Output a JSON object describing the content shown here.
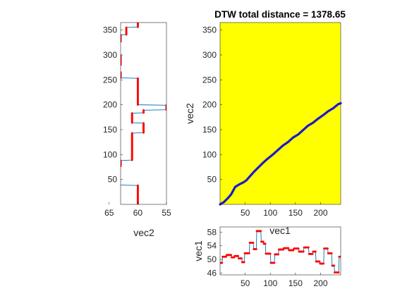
{
  "colors": {
    "background": "#ffffff",
    "map_fill": "#ffff00",
    "path": "#1a1acc",
    "points": "#ff0000",
    "signal_line": "#0072bd",
    "axes": "#262626"
  },
  "chart_data": [
    {
      "id": "vec2_panel",
      "type": "line",
      "orientation": "vertical",
      "xlabel": "vec2",
      "xdir": "reverse",
      "xlim": [
        55,
        63
      ],
      "xticks": [
        65,
        60,
        55
      ],
      "xtick_labels": [
        "65",
        "60",
        "55"
      ],
      "ylim": [
        0,
        365
      ],
      "yticks": [
        50,
        100,
        150,
        200,
        250,
        300,
        350
      ],
      "ytick_labels": [
        "50",
        "100",
        "150",
        "200",
        "250",
        "300",
        "350"
      ],
      "series": [
        {
          "segments": [
            {
              "index": [
                0,
                38
              ],
              "value": 60
            },
            {
              "index": [
                39,
                48
              ],
              "value": 64
            },
            {
              "index": [
                49,
                58
              ],
              "value": 64
            },
            {
              "index": [
                59,
                68
              ],
              "value": 64
            },
            {
              "index": [
                69,
                76
              ],
              "value": 65
            },
            {
              "index": [
                77,
                88
              ],
              "value": 63
            },
            {
              "index": [
                89,
                143
              ],
              "value": 61
            },
            {
              "index": [
                144,
                163
              ],
              "value": 59
            },
            {
              "index": [
                164,
                183
              ],
              "value": 61
            },
            {
              "index": [
                184,
                189
              ],
              "value": 59
            },
            {
              "index": [
                190,
                199
              ],
              "value": 55
            },
            {
              "index": [
                200,
                253
              ],
              "value": 60
            },
            {
              "index": [
                254,
                265
              ],
              "value": 63
            },
            {
              "index": [
                266,
                279
              ],
              "value": 65
            },
            {
              "index": [
                280,
                299
              ],
              "value": 63
            },
            {
              "index": [
                300,
                310
              ],
              "value": 65
            },
            {
              "index": [
                311,
                326
              ],
              "value": 64
            },
            {
              "index": [
                327,
                340
              ],
              "value": 63
            },
            {
              "index": [
                341,
                355
              ],
              "value": 62
            },
            {
              "index": [
                356,
                365
              ],
              "value": 60
            }
          ]
        }
      ]
    },
    {
      "id": "cost_map",
      "type": "line",
      "title": "DTW total distance = 1378.65",
      "ylabel": "vec2",
      "xlim": [
        0,
        240
      ],
      "ylim": [
        0,
        365
      ],
      "xticks": [
        50,
        100,
        150,
        200
      ],
      "xtick_labels": [
        "50",
        "100",
        "150",
        "200"
      ],
      "yticks": [
        50,
        100,
        150,
        200,
        250,
        300,
        350
      ],
      "ytick_labels": [
        "50",
        "100",
        "150",
        "200",
        "250",
        "300",
        "350"
      ],
      "warping_path": {
        "x": [
          0,
          8,
          15,
          22,
          30,
          38,
          46,
          52,
          60,
          68,
          75,
          85,
          95,
          105,
          115,
          125,
          135,
          145,
          155,
          165,
          175,
          185,
          195,
          205,
          215,
          225,
          235,
          240
        ],
        "y": [
          0,
          5,
          12,
          20,
          35,
          40,
          44,
          48,
          57,
          66,
          73,
          83,
          92,
          100,
          109,
          118,
          125,
          134,
          140,
          149,
          158,
          164,
          172,
          179,
          187,
          193,
          201,
          203
        ]
      }
    },
    {
      "id": "vec1_panel",
      "type": "line",
      "xlabel": "vec1",
      "ylabel": "vec1",
      "xlim": [
        0,
        240
      ],
      "ylim": [
        45.5,
        59.5
      ],
      "xticks": [
        50,
        100,
        150,
        200
      ],
      "xtick_labels": [
        "50",
        "100",
        "150",
        "200"
      ],
      "yticks": [
        46,
        50,
        54,
        58
      ],
      "ytick_labels": [
        "46",
        "50",
        "54",
        "58"
      ],
      "series": [
        {
          "segments": [
            {
              "index": [
                0,
                4
              ],
              "value": 49
            },
            {
              "index": [
                5,
                12
              ],
              "value": 50.8
            },
            {
              "index": [
                13,
                22
              ],
              "value": 51.3
            },
            {
              "index": [
                23,
                28
              ],
              "value": 50.6
            },
            {
              "index": [
                29,
                36
              ],
              "value": 51.0
            },
            {
              "index": [
                37,
                43
              ],
              "value": 50.3
            },
            {
              "index": [
                44,
                48
              ],
              "value": 49.2
            },
            {
              "index": [
                49,
                58
              ],
              "value": 51.8
            },
            {
              "index": [
                59,
                66
              ],
              "value": 54.9
            },
            {
              "index": [
                67,
                72
              ],
              "value": 53.0
            },
            {
              "index": [
                73,
                81
              ],
              "value": 58.3
            },
            {
              "index": [
                82,
                86
              ],
              "value": 55.2
            },
            {
              "index": [
                87,
                90
              ],
              "value": 54.6
            },
            {
              "index": [
                91,
                100
              ],
              "value": 51.7
            },
            {
              "index": [
                101,
                108
              ],
              "value": 49.0
            },
            {
              "index": [
                109,
                116
              ],
              "value": 51.5
            },
            {
              "index": [
                117,
                126
              ],
              "value": 52.9
            },
            {
              "index": [
                127,
                136
              ],
              "value": 53.3
            },
            {
              "index": [
                137,
                146
              ],
              "value": 52.7
            },
            {
              "index": [
                147,
                156
              ],
              "value": 53.2
            },
            {
              "index": [
                157,
                166
              ],
              "value": 52.3
            },
            {
              "index": [
                167,
                176
              ],
              "value": 53.5
            },
            {
              "index": [
                177,
                184
              ],
              "value": 51.6
            },
            {
              "index": [
                185,
                190
              ],
              "value": 52.3
            },
            {
              "index": [
                191,
                198
              ],
              "value": 49.4
            },
            {
              "index": [
                199,
                206
              ],
              "value": 48.8
            },
            {
              "index": [
                207,
                214
              ],
              "value": 53.2
            },
            {
              "index": [
                215,
                222
              ],
              "value": 51.8
            },
            {
              "index": [
                223,
                227
              ],
              "value": 48.2
            },
            {
              "index": [
                228,
                236
              ],
              "value": 46.2
            },
            {
              "index": [
                237,
                240
              ],
              "value": 50.8
            }
          ]
        }
      ]
    }
  ]
}
